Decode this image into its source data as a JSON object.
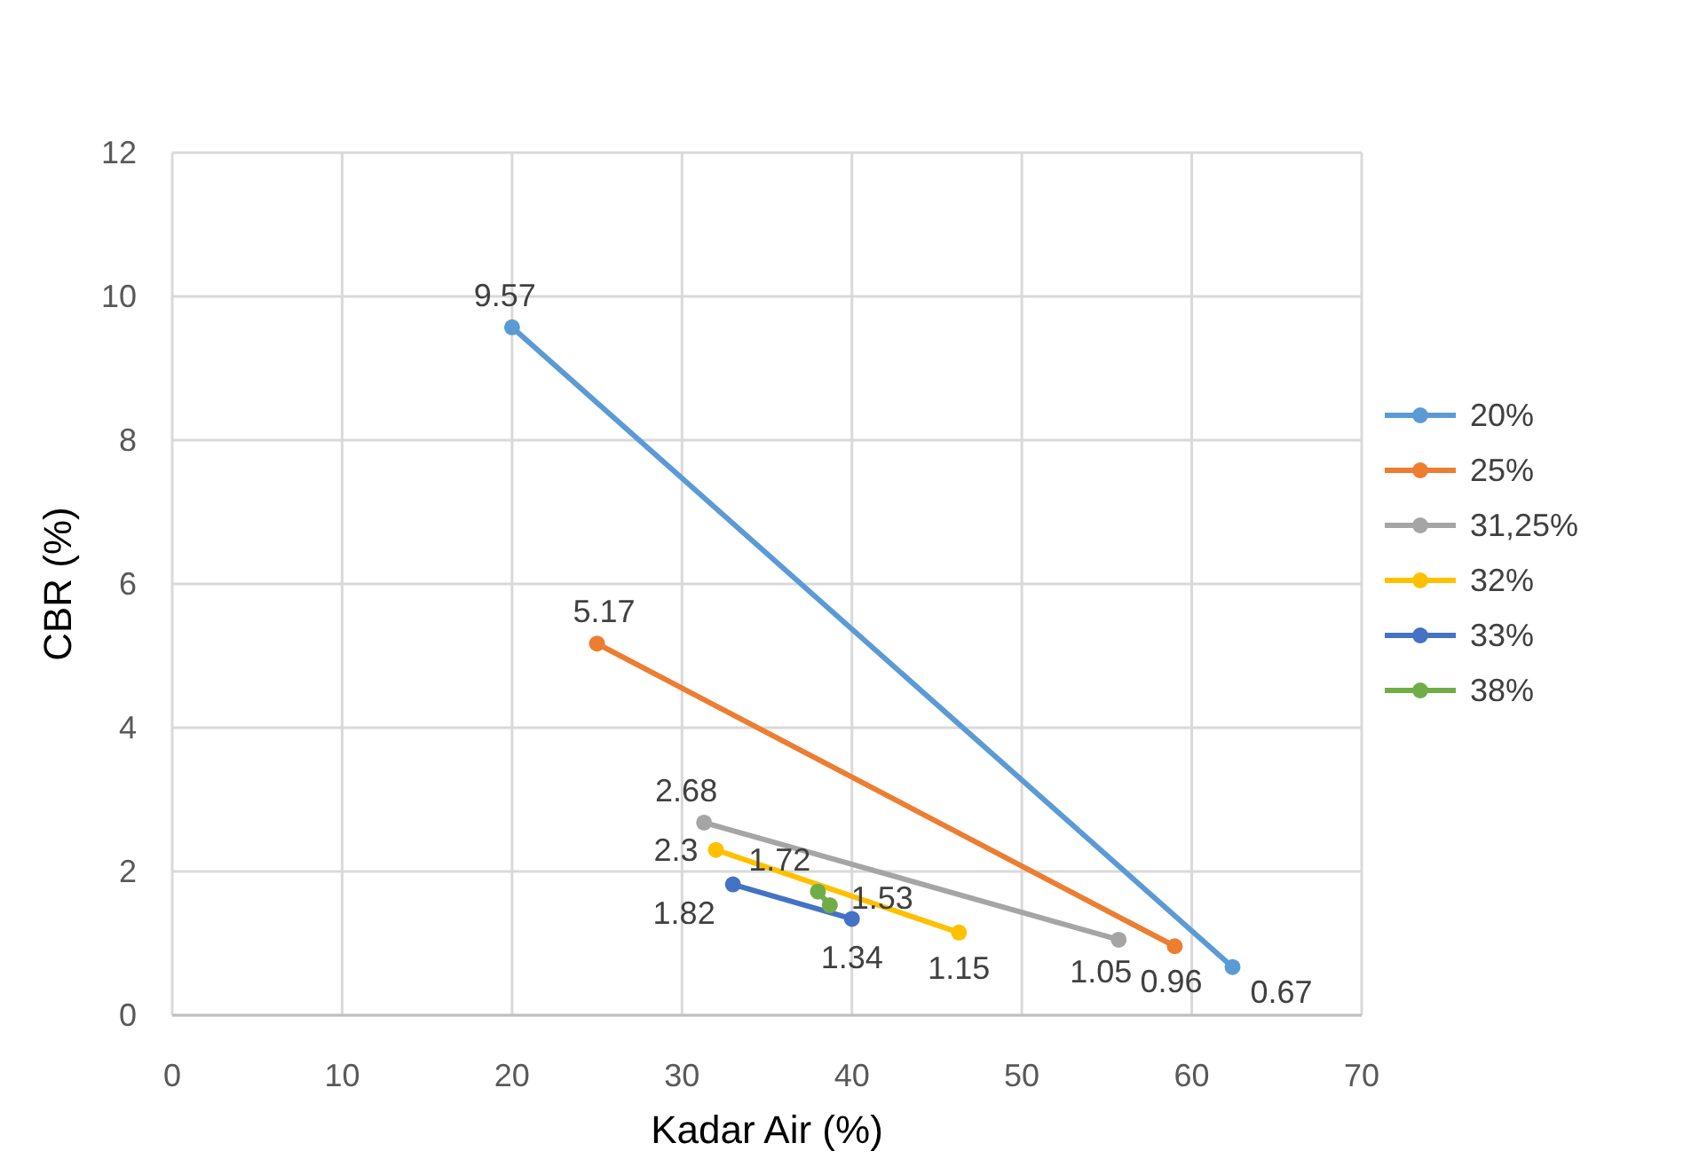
{
  "chart_data": {
    "type": "line",
    "xlabel": "Kadar Air (%)",
    "ylabel": "CBR (%)",
    "xlim": [
      0,
      70
    ],
    "xticks": [
      0,
      10,
      20,
      30,
      40,
      50,
      60,
      70
    ],
    "ylim": [
      0,
      12
    ],
    "yticks": [
      0,
      2,
      4,
      6,
      8,
      10,
      12
    ],
    "grid": true,
    "legend": "right",
    "marker": "circle",
    "line_style": "solid",
    "data_labels": true,
    "series": [
      {
        "name": "20%",
        "color": "#5b9bd5",
        "x": [
          20,
          62.4
        ],
        "values": [
          9.57,
          0.67
        ]
      },
      {
        "name": "25%",
        "color": "#ed7d31",
        "x": [
          25,
          59
        ],
        "values": [
          5.17,
          0.96
        ]
      },
      {
        "name": "31,25%",
        "color": "#a5a5a5",
        "x": [
          31.3,
          55.7
        ],
        "values": [
          2.68,
          1.05
        ]
      },
      {
        "name": "32%",
        "color": "#ffc000",
        "x": [
          32,
          46.3
        ],
        "values": [
          2.3,
          1.15
        ]
      },
      {
        "name": "33%",
        "color": "#4472c4",
        "x": [
          33,
          40
        ],
        "values": [
          1.82,
          1.34
        ]
      },
      {
        "name": "38%",
        "color": "#70ad47",
        "x": [
          38,
          38.7
        ],
        "values": [
          1.72,
          1.53
        ]
      }
    ]
  }
}
